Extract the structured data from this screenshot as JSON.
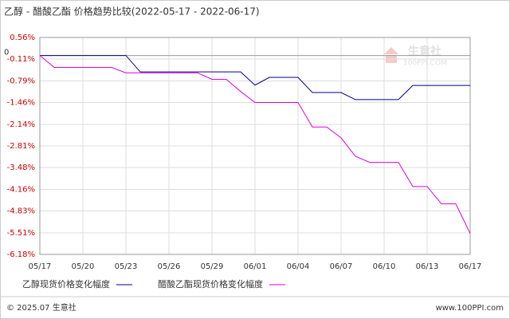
{
  "chart_data": {
    "type": "line",
    "title": "乙醇 - 醋酸乙酯 价格趋势比较(2022-05-17 - 2022-06-17)",
    "categories": [
      "05/17",
      null,
      null,
      "05/20",
      null,
      null,
      "05/23",
      null,
      null,
      "05/26",
      null,
      null,
      "05/29",
      null,
      null,
      "06/01",
      null,
      null,
      "06/04",
      null,
      null,
      "06/07",
      null,
      null,
      "06/10",
      null,
      null,
      "06/13",
      null,
      null,
      "06/17"
    ],
    "series": [
      {
        "name": "乙醇现货价格变化幅度",
        "color": "#00008b",
        "values": [
          0,
          0,
          0,
          0,
          0,
          0,
          0,
          -0.51,
          -0.51,
          -0.51,
          -0.51,
          -0.51,
          -0.51,
          -0.51,
          -0.51,
          -0.92,
          -0.68,
          -0.68,
          -0.68,
          -1.15,
          -1.15,
          -1.15,
          -1.37,
          -1.37,
          -1.37,
          -1.37,
          -0.93,
          -0.93,
          -0.93,
          -0.93,
          -0.93
        ]
      },
      {
        "name": "醋酸乙酯现货价格变化幅度",
        "color": "#e000e0",
        "values": [
          0,
          -0.37,
          -0.37,
          -0.37,
          -0.37,
          -0.37,
          -0.54,
          -0.54,
          -0.54,
          -0.54,
          -0.54,
          -0.54,
          -0.74,
          -0.74,
          -1.12,
          -1.46,
          -1.46,
          -1.46,
          -1.46,
          -2.22,
          -2.22,
          -2.56,
          -3.13,
          -3.32,
          -3.32,
          -3.32,
          -4.07,
          -4.07,
          -4.61,
          -4.61,
          -5.53
        ]
      }
    ],
    "ylim": [
      -6.18,
      0.56
    ],
    "yticks": [
      {
        "value": 0.56,
        "label": "0.56%"
      },
      {
        "value": -0.11,
        "label": "-0.11%"
      },
      {
        "value": -0.79,
        "label": "-0.79%"
      },
      {
        "value": -1.46,
        "label": "-1.46%"
      },
      {
        "value": -2.14,
        "label": "-2.14%"
      },
      {
        "value": -2.81,
        "label": "-2.81%"
      },
      {
        "value": -3.48,
        "label": "-3.48%"
      },
      {
        "value": -4.16,
        "label": "-4.16%"
      },
      {
        "value": -4.83,
        "label": "-4.83%"
      },
      {
        "value": -5.51,
        "label": "-5.51%"
      },
      {
        "value": -6.18,
        "label": "-6.18%"
      }
    ],
    "reference_line": 0,
    "grid": true,
    "watermark": {
      "name": "生意社",
      "site": "100PPI.COM"
    },
    "footer": {
      "copyright": "© 2025.07 生意社",
      "url": "www.100PPI.com"
    }
  }
}
